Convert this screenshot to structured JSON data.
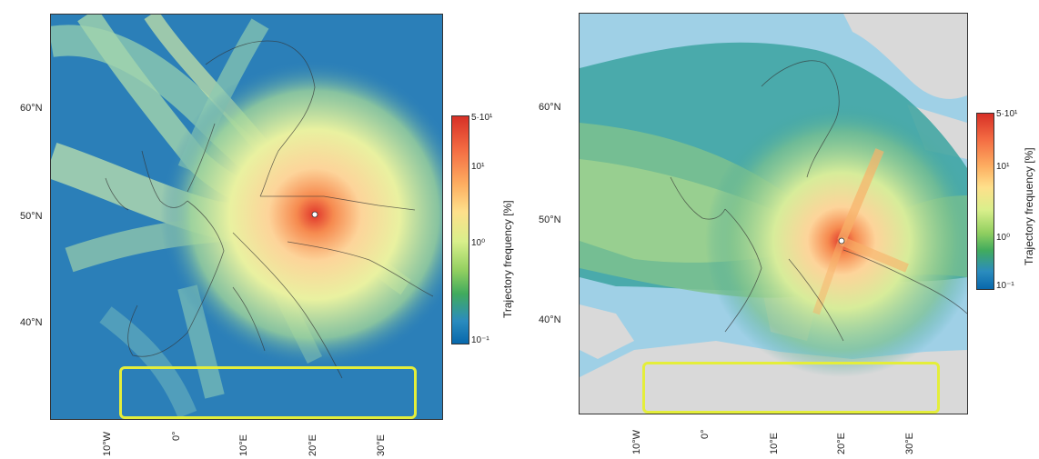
{
  "figure": {
    "panels": [
      {
        "id": "left",
        "lat_labels": [
          "60°N",
          "50°N",
          "40°N"
        ],
        "lon_labels": [
          "10°W",
          "0°",
          "10°E",
          "20°E",
          "30°E"
        ],
        "colorbar": {
          "title": "Trajectory frequency [%]",
          "ticks": [
            "5·10¹",
            "10¹",
            "10⁰",
            "10⁻¹"
          ],
          "colors": [
            "#d73027",
            "#f46d43",
            "#fdae61",
            "#fee08b",
            "#d9ef8b",
            "#91cf60",
            "#41ab5d",
            "#2b8cbe",
            "#0868ac"
          ]
        }
      },
      {
        "id": "right",
        "lat_labels": [
          "60°N",
          "50°N",
          "40°N"
        ],
        "lon_labels": [
          "10°W",
          "0°",
          "10°E",
          "20°E",
          "30°E"
        ],
        "colorbar": {
          "title": "Trajectory frequency [%]",
          "ticks": [
            "5·10¹",
            "10¹",
            "10⁰",
            "10⁻¹"
          ],
          "colors": [
            "#d73027",
            "#f46d43",
            "#fdae61",
            "#fee08b",
            "#d9ef8b",
            "#91cf60",
            "#41ab5d",
            "#2b8cbe",
            "#0868ac"
          ]
        }
      }
    ],
    "highlight_color": "#e4ee3a",
    "ocean_color_left": "#2b7fb8",
    "ocean_color_right": "#9fd0e6",
    "land_no_data_color": "#d9d9d9"
  }
}
